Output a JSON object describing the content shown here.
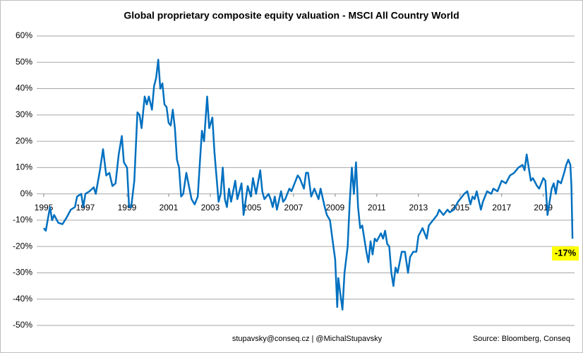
{
  "chart_data": {
    "type": "line",
    "title": "Global proprietary composite equity valuation - MSCI All Country World",
    "footer_left": "stupavsky@conseq.cz |  @MichalStupavsky",
    "footer_right": "Source: Bloomberg, Conseq",
    "ylim": [
      -50,
      60
    ],
    "yticks": [
      {
        "value": -50,
        "label": "-50%"
      },
      {
        "value": -40,
        "label": "-40%"
      },
      {
        "value": -30,
        "label": "-30%"
      },
      {
        "value": -20,
        "label": "-20%"
      },
      {
        "value": -10,
        "label": "-10%"
      },
      {
        "value": 0,
        "label": "0%"
      },
      {
        "value": 10,
        "label": "10%"
      },
      {
        "value": 20,
        "label": "20%"
      },
      {
        "value": 30,
        "label": "30%"
      },
      {
        "value": 40,
        "label": "40%"
      },
      {
        "value": 50,
        "label": "50%"
      },
      {
        "value": 60,
        "label": "60%"
      }
    ],
    "xlim": [
      1995,
      2020.5
    ],
    "xticks": [
      1995,
      1997,
      1999,
      2001,
      2003,
      2005,
      2007,
      2009,
      2011,
      2013,
      2015,
      2017,
      2019
    ],
    "grid": true,
    "annotations": [
      {
        "x": 2020.4,
        "y": -17,
        "label": "-17%"
      }
    ],
    "series": [
      {
        "name": "MSCI All Country World",
        "color": "#0070c0",
        "x": [
          1995.0,
          1995.1,
          1995.3,
          1995.4,
          1995.5,
          1995.7,
          1995.9,
          1996.1,
          1996.3,
          1996.5,
          1996.6,
          1996.8,
          1996.9,
          1997.0,
          1997.2,
          1997.4,
          1997.5,
          1997.7,
          1997.85,
          1998.0,
          1998.15,
          1998.3,
          1998.45,
          1998.6,
          1998.75,
          1998.85,
          1999.0,
          1999.1,
          1999.2,
          1999.35,
          1999.5,
          1999.6,
          1999.7,
          1999.85,
          1999.95,
          2000.05,
          2000.2,
          2000.3,
          2000.4,
          2000.5,
          2000.6,
          2000.7,
          2000.8,
          2000.9,
          2001.0,
          2001.1,
          2001.2,
          2001.3,
          2001.4,
          2001.5,
          2001.6,
          2001.7,
          2001.85,
          2002.0,
          2002.1,
          2002.25,
          2002.4,
          2002.5,
          2002.6,
          2002.7,
          2002.85,
          2002.95,
          2003.1,
          2003.2,
          2003.4,
          2003.5,
          2003.6,
          2003.7,
          2003.8,
          2003.9,
          2004.0,
          2004.2,
          2004.3,
          2004.5,
          2004.6,
          2004.8,
          2004.95,
          2005.05,
          2005.2,
          2005.4,
          2005.5,
          2005.6,
          2005.8,
          2005.9,
          2006.0,
          2006.1,
          2006.2,
          2006.4,
          2006.5,
          2006.6,
          2006.8,
          2006.9,
          2007.0,
          2007.2,
          2007.3,
          2007.5,
          2007.6,
          2007.7,
          2007.85,
          2008.0,
          2008.2,
          2008.3,
          2008.5,
          2008.6,
          2008.75,
          2008.85,
          2009.0,
          2009.1,
          2009.15,
          2009.25,
          2009.35,
          2009.45,
          2009.6,
          2009.7,
          2009.8,
          2009.9,
          2010.0,
          2010.1,
          2010.2,
          2010.3,
          2010.5,
          2010.6,
          2010.7,
          2010.8,
          2010.9,
          2011.0,
          2011.2,
          2011.3,
          2011.4,
          2011.5,
          2011.6,
          2011.7,
          2011.8,
          2011.9,
          2012.0,
          2012.2,
          2012.35,
          2012.5,
          2012.6,
          2012.75,
          2012.9,
          2013.0,
          2013.2,
          2013.4,
          2013.5,
          2013.7,
          2013.9,
          2014.0,
          2014.2,
          2014.4,
          2014.5,
          2014.7,
          2014.9,
          2015.0,
          2015.2,
          2015.35,
          2015.5,
          2015.6,
          2015.7,
          2015.8,
          2016.0,
          2016.1,
          2016.3,
          2016.5,
          2016.6,
          2016.8,
          2016.9,
          2017.0,
          2017.2,
          2017.4,
          2017.6,
          2017.8,
          2018.0,
          2018.1,
          2018.2,
          2018.3,
          2018.4,
          2018.5,
          2018.7,
          2018.8,
          2019.0,
          2019.1,
          2019.2,
          2019.4,
          2019.5,
          2019.6,
          2019.7,
          2019.85,
          2020.0,
          2020.1,
          2020.2,
          2020.3,
          2020.35,
          2020.4
        ],
        "values": [
          -13,
          -14,
          -5,
          -10,
          -8,
          -11,
          -11.5,
          -9,
          -6,
          -5,
          -1,
          0,
          -5,
          0,
          1,
          2.5,
          0,
          9,
          17,
          7,
          8,
          3,
          4,
          15,
          22,
          12,
          10,
          -5,
          -5,
          5,
          31,
          30,
          25,
          37,
          34,
          37,
          32,
          41,
          44,
          51,
          40,
          42,
          34,
          33,
          27,
          26,
          32,
          25,
          13,
          10,
          -1,
          0,
          8,
          2,
          -2,
          -4,
          -1,
          12,
          24,
          20,
          37,
          25,
          29,
          16,
          -3,
          0,
          10,
          -2,
          -5,
          2,
          -3,
          5,
          -2,
          4,
          -8,
          3,
          -1,
          6,
          0,
          9,
          1,
          -2,
          0,
          -2,
          -5,
          -1,
          -6,
          1,
          -3,
          -2,
          2,
          1,
          3,
          7,
          6,
          2,
          8,
          8,
          -1,
          2,
          -2,
          2,
          -5,
          -8,
          -10,
          -16,
          -25,
          -43,
          -32,
          -38,
          -44,
          -30,
          -20,
          -3,
          10,
          0,
          12,
          -5,
          -13,
          -12,
          -22,
          -26,
          -18,
          -23,
          -17,
          -18,
          -15,
          -17,
          -14,
          -19,
          -20,
          -30,
          -35,
          -28,
          -30,
          -22,
          -22,
          -30,
          -24,
          -22,
          -22,
          -16,
          -13,
          -17,
          -12,
          -10,
          -8,
          -6,
          -8,
          -6,
          -7,
          -6,
          -3,
          -2,
          0,
          1,
          -4,
          -1,
          -2,
          1,
          -6,
          -3,
          1,
          0,
          2,
          1,
          3,
          5,
          4,
          7,
          8,
          10,
          11,
          9,
          15,
          10,
          5,
          6,
          3,
          2,
          6,
          5,
          -8,
          2,
          4,
          0,
          5,
          4,
          8,
          11,
          13,
          11,
          3,
          -17
        ]
      }
    ]
  }
}
